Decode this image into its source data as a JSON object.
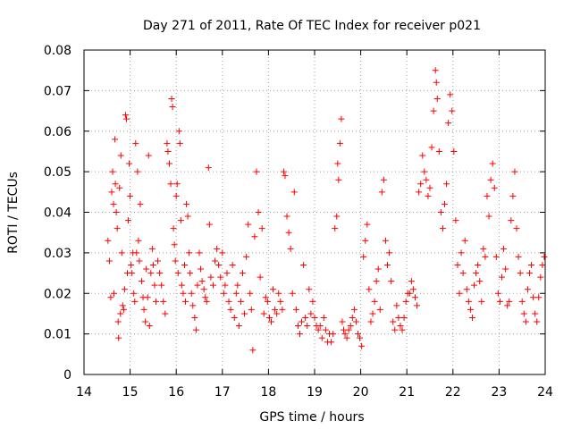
{
  "chart_data": {
    "type": "scatter",
    "title": "Day 271 of 2011, Rate Of TEC Index for receiver p021",
    "xlabel": "GPS time / hours",
    "ylabel": "ROTI / TECUs",
    "xlim": [
      14,
      24
    ],
    "ylim": [
      0,
      0.08
    ],
    "xticks": [
      "14",
      "15",
      "16",
      "17",
      "18",
      "19",
      "20",
      "21",
      "22",
      "23",
      "24"
    ],
    "xtick_values": [
      14,
      15,
      16,
      17,
      18,
      19,
      20,
      21,
      22,
      23,
      24
    ],
    "yticks": [
      "0",
      "0.01",
      "0.02",
      "0.03",
      "0.04",
      "0.05",
      "0.06",
      "0.07",
      "0.08"
    ],
    "ytick_values": [
      0,
      0.01,
      0.02,
      0.03,
      0.04,
      0.05,
      0.06,
      0.07,
      0.08
    ],
    "grid": true,
    "marker": "+",
    "color": "#ff0000",
    "series": [
      {
        "name": "ROTI",
        "points": [
          [
            14.52,
            0.033
          ],
          [
            14.55,
            0.028
          ],
          [
            14.58,
            0.019
          ],
          [
            14.6,
            0.045
          ],
          [
            14.62,
            0.05
          ],
          [
            14.64,
            0.042
          ],
          [
            14.65,
            0.02
          ],
          [
            14.67,
            0.058
          ],
          [
            14.68,
            0.047
          ],
          [
            14.7,
            0.04
          ],
          [
            14.72,
            0.036
          ],
          [
            14.74,
            0.013
          ],
          [
            14.75,
            0.009
          ],
          [
            14.77,
            0.046
          ],
          [
            14.79,
            0.015
          ],
          [
            14.8,
            0.054
          ],
          [
            14.82,
            0.03
          ],
          [
            14.84,
            0.017
          ],
          [
            14.86,
            0.016
          ],
          [
            14.88,
            0.021
          ],
          [
            14.9,
            0.064
          ],
          [
            14.92,
            0.063
          ],
          [
            14.94,
            0.025
          ],
          [
            14.96,
            0.038
          ],
          [
            14.98,
            0.052
          ],
          [
            15.0,
            0.044
          ],
          [
            15.02,
            0.027
          ],
          [
            15.04,
            0.025
          ],
          [
            15.06,
            0.03
          ],
          [
            15.08,
            0.02
          ],
          [
            15.1,
            0.018
          ],
          [
            15.12,
            0.057
          ],
          [
            15.14,
            0.03
          ],
          [
            15.16,
            0.05
          ],
          [
            15.18,
            0.033
          ],
          [
            15.2,
            0.028
          ],
          [
            15.22,
            0.042
          ],
          [
            15.25,
            0.023
          ],
          [
            15.28,
            0.019
          ],
          [
            15.3,
            0.016
          ],
          [
            15.33,
            0.013
          ],
          [
            15.35,
            0.026
          ],
          [
            15.38,
            0.019
          ],
          [
            15.4,
            0.054
          ],
          [
            15.42,
            0.012
          ],
          [
            15.45,
            0.025
          ],
          [
            15.48,
            0.031
          ],
          [
            15.5,
            0.027
          ],
          [
            15.53,
            0.022
          ],
          [
            15.56,
            0.018
          ],
          [
            15.6,
            0.028
          ],
          [
            15.64,
            0.025
          ],
          [
            15.68,
            0.022
          ],
          [
            15.72,
            0.018
          ],
          [
            15.76,
            0.015
          ],
          [
            15.8,
            0.057
          ],
          [
            15.82,
            0.055
          ],
          [
            15.85,
            0.052
          ],
          [
            15.88,
            0.047
          ],
          [
            15.9,
            0.068
          ],
          [
            15.92,
            0.066
          ],
          [
            15.94,
            0.036
          ],
          [
            15.96,
            0.032
          ],
          [
            15.98,
            0.028
          ],
          [
            16.0,
            0.044
          ],
          [
            16.02,
            0.047
          ],
          [
            16.04,
            0.025
          ],
          [
            16.06,
            0.06
          ],
          [
            16.08,
            0.057
          ],
          [
            16.1,
            0.038
          ],
          [
            16.12,
            0.022
          ],
          [
            16.15,
            0.02
          ],
          [
            16.18,
            0.027
          ],
          [
            16.2,
            0.018
          ],
          [
            16.22,
            0.042
          ],
          [
            16.25,
            0.039
          ],
          [
            16.28,
            0.03
          ],
          [
            16.3,
            0.025
          ],
          [
            16.33,
            0.02
          ],
          [
            16.36,
            0.017
          ],
          [
            16.4,
            0.014
          ],
          [
            16.43,
            0.011
          ],
          [
            16.46,
            0.022
          ],
          [
            16.5,
            0.03
          ],
          [
            16.53,
            0.026
          ],
          [
            16.56,
            0.023
          ],
          [
            16.6,
            0.021
          ],
          [
            16.63,
            0.019
          ],
          [
            16.66,
            0.018
          ],
          [
            16.7,
            0.051
          ],
          [
            16.72,
            0.037
          ],
          [
            16.75,
            0.024
          ],
          [
            16.8,
            0.022
          ],
          [
            16.84,
            0.028
          ],
          [
            16.88,
            0.031
          ],
          [
            16.92,
            0.027
          ],
          [
            16.96,
            0.024
          ],
          [
            17.0,
            0.03
          ],
          [
            17.03,
            0.02
          ],
          [
            17.06,
            0.022
          ],
          [
            17.1,
            0.025
          ],
          [
            17.14,
            0.018
          ],
          [
            17.18,
            0.016
          ],
          [
            17.22,
            0.027
          ],
          [
            17.26,
            0.014
          ],
          [
            17.3,
            0.02
          ],
          [
            17.33,
            0.022
          ],
          [
            17.36,
            0.012
          ],
          [
            17.4,
            0.018
          ],
          [
            17.44,
            0.025
          ],
          [
            17.48,
            0.015
          ],
          [
            17.52,
            0.029
          ],
          [
            17.56,
            0.037
          ],
          [
            17.6,
            0.02
          ],
          [
            17.63,
            0.016
          ],
          [
            17.66,
            0.006
          ],
          [
            17.7,
            0.034
          ],
          [
            17.74,
            0.05
          ],
          [
            17.78,
            0.04
          ],
          [
            17.82,
            0.024
          ],
          [
            17.86,
            0.036
          ],
          [
            17.9,
            0.015
          ],
          [
            17.94,
            0.019
          ],
          [
            17.98,
            0.018
          ],
          [
            18.02,
            0.014
          ],
          [
            18.06,
            0.013
          ],
          [
            18.1,
            0.021
          ],
          [
            18.14,
            0.016
          ],
          [
            18.18,
            0.015
          ],
          [
            18.22,
            0.02
          ],
          [
            18.26,
            0.018
          ],
          [
            18.3,
            0.016
          ],
          [
            18.33,
            0.05
          ],
          [
            18.36,
            0.049
          ],
          [
            18.4,
            0.039
          ],
          [
            18.44,
            0.035
          ],
          [
            18.48,
            0.031
          ],
          [
            18.52,
            0.02
          ],
          [
            18.56,
            0.045
          ],
          [
            18.6,
            0.016
          ],
          [
            18.64,
            0.012
          ],
          [
            18.68,
            0.01
          ],
          [
            18.72,
            0.013
          ],
          [
            18.76,
            0.027
          ],
          [
            18.8,
            0.014
          ],
          [
            18.84,
            0.012
          ],
          [
            18.88,
            0.021
          ],
          [
            18.92,
            0.015
          ],
          [
            18.96,
            0.018
          ],
          [
            19.0,
            0.014
          ],
          [
            19.04,
            0.012
          ],
          [
            19.08,
            0.011
          ],
          [
            19.12,
            0.012
          ],
          [
            19.16,
            0.009
          ],
          [
            19.2,
            0.014
          ],
          [
            19.24,
            0.011
          ],
          [
            19.28,
            0.008
          ],
          [
            19.32,
            0.01
          ],
          [
            19.36,
            0.008
          ],
          [
            19.4,
            0.01
          ],
          [
            19.44,
            0.036
          ],
          [
            19.48,
            0.039
          ],
          [
            19.5,
            0.052
          ],
          [
            19.52,
            0.048
          ],
          [
            19.55,
            0.057
          ],
          [
            19.58,
            0.063
          ],
          [
            19.6,
            0.013
          ],
          [
            19.63,
            0.011
          ],
          [
            19.66,
            0.01
          ],
          [
            19.7,
            0.009
          ],
          [
            19.74,
            0.011
          ],
          [
            19.78,
            0.012
          ],
          [
            19.82,
            0.014
          ],
          [
            19.86,
            0.016
          ],
          [
            19.9,
            0.013
          ],
          [
            19.94,
            0.01
          ],
          [
            19.98,
            0.009
          ],
          [
            20.02,
            0.007
          ],
          [
            20.06,
            0.029
          ],
          [
            20.1,
            0.033
          ],
          [
            20.14,
            0.037
          ],
          [
            20.18,
            0.021
          ],
          [
            20.22,
            0.013
          ],
          [
            20.26,
            0.015
          ],
          [
            20.3,
            0.018
          ],
          [
            20.34,
            0.023
          ],
          [
            20.38,
            0.026
          ],
          [
            20.42,
            0.016
          ],
          [
            20.46,
            0.045
          ],
          [
            20.5,
            0.048
          ],
          [
            20.54,
            0.033
          ],
          [
            20.58,
            0.027
          ],
          [
            20.62,
            0.03
          ],
          [
            20.66,
            0.023
          ],
          [
            20.7,
            0.013
          ],
          [
            20.74,
            0.011
          ],
          [
            20.78,
            0.017
          ],
          [
            20.82,
            0.014
          ],
          [
            20.86,
            0.012
          ],
          [
            20.9,
            0.011
          ],
          [
            20.94,
            0.014
          ],
          [
            20.98,
            0.018
          ],
          [
            21.02,
            0.02
          ],
          [
            21.06,
            0.02
          ],
          [
            21.1,
            0.023
          ],
          [
            21.14,
            0.021
          ],
          [
            21.18,
            0.019
          ],
          [
            21.22,
            0.017
          ],
          [
            21.26,
            0.045
          ],
          [
            21.3,
            0.047
          ],
          [
            21.34,
            0.054
          ],
          [
            21.38,
            0.05
          ],
          [
            21.42,
            0.048
          ],
          [
            21.46,
            0.044
          ],
          [
            21.5,
            0.046
          ],
          [
            21.54,
            0.056
          ],
          [
            21.58,
            0.065
          ],
          [
            21.62,
            0.075
          ],
          [
            21.64,
            0.072
          ],
          [
            21.66,
            0.068
          ],
          [
            21.7,
            0.055
          ],
          [
            21.74,
            0.04
          ],
          [
            21.78,
            0.036
          ],
          [
            21.82,
            0.042
          ],
          [
            21.86,
            0.047
          ],
          [
            21.9,
            0.062
          ],
          [
            21.94,
            0.069
          ],
          [
            21.98,
            0.065
          ],
          [
            22.02,
            0.055
          ],
          [
            22.06,
            0.038
          ],
          [
            22.1,
            0.027
          ],
          [
            22.14,
            0.02
          ],
          [
            22.18,
            0.03
          ],
          [
            22.22,
            0.025
          ],
          [
            22.26,
            0.033
          ],
          [
            22.3,
            0.021
          ],
          [
            22.34,
            0.018
          ],
          [
            22.38,
            0.016
          ],
          [
            22.42,
            0.014
          ],
          [
            22.46,
            0.022
          ],
          [
            22.5,
            0.025
          ],
          [
            22.54,
            0.027
          ],
          [
            22.58,
            0.023
          ],
          [
            22.62,
            0.018
          ],
          [
            22.66,
            0.031
          ],
          [
            22.7,
            0.029
          ],
          [
            22.74,
            0.044
          ],
          [
            22.78,
            0.039
          ],
          [
            22.82,
            0.048
          ],
          [
            22.86,
            0.052
          ],
          [
            22.9,
            0.046
          ],
          [
            22.94,
            0.029
          ],
          [
            22.98,
            0.02
          ],
          [
            23.02,
            0.018
          ],
          [
            23.06,
            0.024
          ],
          [
            23.1,
            0.031
          ],
          [
            23.14,
            0.026
          ],
          [
            23.18,
            0.017
          ],
          [
            23.22,
            0.018
          ],
          [
            23.26,
            0.038
          ],
          [
            23.3,
            0.044
          ],
          [
            23.34,
            0.05
          ],
          [
            23.38,
            0.036
          ],
          [
            23.42,
            0.029
          ],
          [
            23.46,
            0.025
          ],
          [
            23.5,
            0.018
          ],
          [
            23.54,
            0.015
          ],
          [
            23.58,
            0.013
          ],
          [
            23.62,
            0.021
          ],
          [
            23.66,
            0.025
          ],
          [
            23.7,
            0.027
          ],
          [
            23.74,
            0.019
          ],
          [
            23.78,
            0.015
          ],
          [
            23.82,
            0.013
          ],
          [
            23.86,
            0.019
          ],
          [
            23.9,
            0.024
          ],
          [
            23.94,
            0.027
          ],
          [
            23.98,
            0.029
          ]
        ]
      }
    ]
  }
}
